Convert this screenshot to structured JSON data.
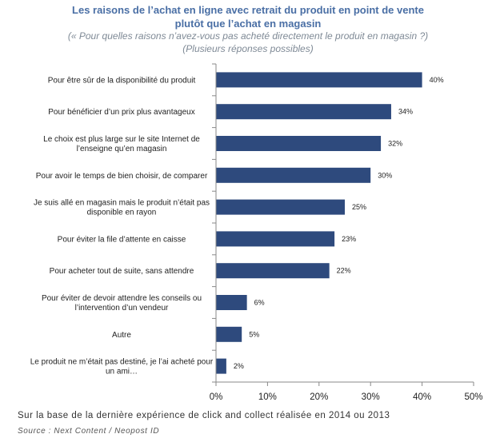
{
  "header": {
    "title_line1": "Les raisons de l’achat en ligne avec retrait du produit en point de vente",
    "title_line2": "plutôt que l’achat en magasin",
    "subtitle_line1": "(« Pour quelles raisons n’avez-vous pas acheté directement le produit en magasin ?)",
    "subtitle_line2": "(Plusieurs réponses possibles)"
  },
  "footer": {
    "note": "Sur la base de la dernière expérience de click and collect réalisée en 2014 ou 2013",
    "source": "Source : Next Content / Neopost ID"
  },
  "colors": {
    "bar": "#2e4a7d",
    "axis": "#888888"
  },
  "chart_data": {
    "type": "bar",
    "orientation": "horizontal",
    "categories": [
      [
        "Pour être sûr de la disponibilité du produit"
      ],
      [
        "Pour bénéficier d’un prix plus avantageux"
      ],
      [
        "Le choix est plus large sur le site Internet de",
        "l’enseigne qu’en magasin"
      ],
      [
        "Pour avoir le temps de bien choisir, de comparer"
      ],
      [
        "Je suis allé en magasin mais le produit n’était pas",
        "disponible en rayon"
      ],
      [
        "Pour éviter la file d’attente en caisse"
      ],
      [
        "Pour acheter tout de suite, sans attendre"
      ],
      [
        "Pour éviter de devoir attendre les conseils ou",
        "l’intervention d’un vendeur"
      ],
      [
        "Autre"
      ],
      [
        "Le produit ne m’était pas destiné, je l’ai acheté pour",
        "un ami…"
      ]
    ],
    "values": [
      40,
      34,
      32,
      30,
      25,
      23,
      22,
      6,
      5,
      2
    ],
    "value_labels": [
      "40%",
      "34%",
      "32%",
      "30%",
      "25%",
      "23%",
      "22%",
      "6%",
      "5%",
      "2%"
    ],
    "xlim": [
      0,
      50
    ],
    "xticks": [
      0,
      10,
      20,
      30,
      40,
      50
    ],
    "xtick_labels": [
      "0%",
      "10%",
      "20%",
      "30%",
      "40%",
      "50%"
    ],
    "grid": false,
    "legend": "none"
  }
}
